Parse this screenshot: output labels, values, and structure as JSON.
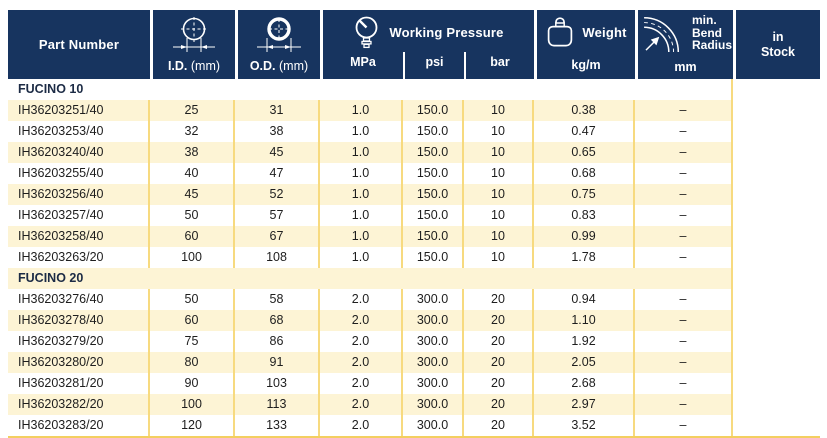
{
  "colors": {
    "header_navy": "#17345f",
    "row_cream": "#fdf4d5",
    "divider_gold": "#f7da7f",
    "border_gold": "#f3cf60",
    "header_text": "#ffffff",
    "body_text": "#1e1e1e",
    "section_text": "#1c2b45"
  },
  "table": {
    "header": {
      "part_number": "Part Number",
      "id_abbr": "I.D.",
      "id_unit": "(mm)",
      "od_abbr": "O.D.",
      "od_unit": "(mm)",
      "working_pressure": "Working Pressure",
      "mpa": "MPa",
      "psi": "psi",
      "bar": "bar",
      "weight": "Weight",
      "weight_unit": "kg/m",
      "bend_line1": "min.",
      "bend_line2": "Bend",
      "bend_line3": "Radius",
      "bend_unit": "mm",
      "stock_line1": "in",
      "stock_line2": "Stock",
      "icons": [
        "inner-diameter-icon",
        "outer-diameter-icon",
        "pressure-gauge-icon",
        "weight-icon",
        "bend-radius-icon"
      ]
    },
    "columns": [
      "Part Number",
      "I.D. (mm)",
      "O.D. (mm)",
      "MPa",
      "psi",
      "bar",
      "kg/m",
      "mm",
      "in Stock"
    ],
    "sections": [
      {
        "name": "FUCINO 10",
        "rows": [
          [
            "IH36203251/40",
            "25",
            "31",
            "1.0",
            "150.0",
            "10",
            "0.38",
            "–",
            ""
          ],
          [
            "IH36203253/40",
            "32",
            "38",
            "1.0",
            "150.0",
            "10",
            "0.47",
            "–",
            ""
          ],
          [
            "IH36203240/40",
            "38",
            "45",
            "1.0",
            "150.0",
            "10",
            "0.65",
            "–",
            ""
          ],
          [
            "IH36203255/40",
            "40",
            "47",
            "1.0",
            "150.0",
            "10",
            "0.68",
            "–",
            ""
          ],
          [
            "IH36203256/40",
            "45",
            "52",
            "1.0",
            "150.0",
            "10",
            "0.75",
            "–",
            ""
          ],
          [
            "IH36203257/40",
            "50",
            "57",
            "1.0",
            "150.0",
            "10",
            "0.83",
            "–",
            ""
          ],
          [
            "IH36203258/40",
            "60",
            "67",
            "1.0",
            "150.0",
            "10",
            "0.99",
            "–",
            ""
          ],
          [
            "IH36203263/20",
            "100",
            "108",
            "1.0",
            "150.0",
            "10",
            "1.78",
            "–",
            ""
          ]
        ]
      },
      {
        "name": "FUCINO 20",
        "rows": [
          [
            "IH36203276/40",
            "50",
            "58",
            "2.0",
            "300.0",
            "20",
            "0.94",
            "–",
            ""
          ],
          [
            "IH36203278/40",
            "60",
            "68",
            "2.0",
            "300.0",
            "20",
            "1.10",
            "–",
            ""
          ],
          [
            "IH36203279/20",
            "75",
            "86",
            "2.0",
            "300.0",
            "20",
            "1.92",
            "–",
            ""
          ],
          [
            "IH36203280/20",
            "80",
            "91",
            "2.0",
            "300.0",
            "20",
            "2.05",
            "–",
            ""
          ],
          [
            "IH36203281/20",
            "90",
            "103",
            "2.0",
            "300.0",
            "20",
            "2.68",
            "–",
            ""
          ],
          [
            "IH36203282/20",
            "100",
            "113",
            "2.0",
            "300.0",
            "20",
            "2.97",
            "–",
            ""
          ],
          [
            "IH36203283/20",
            "120",
            "133",
            "2.0",
            "300.0",
            "20",
            "3.52",
            "–",
            ""
          ]
        ]
      }
    ]
  }
}
